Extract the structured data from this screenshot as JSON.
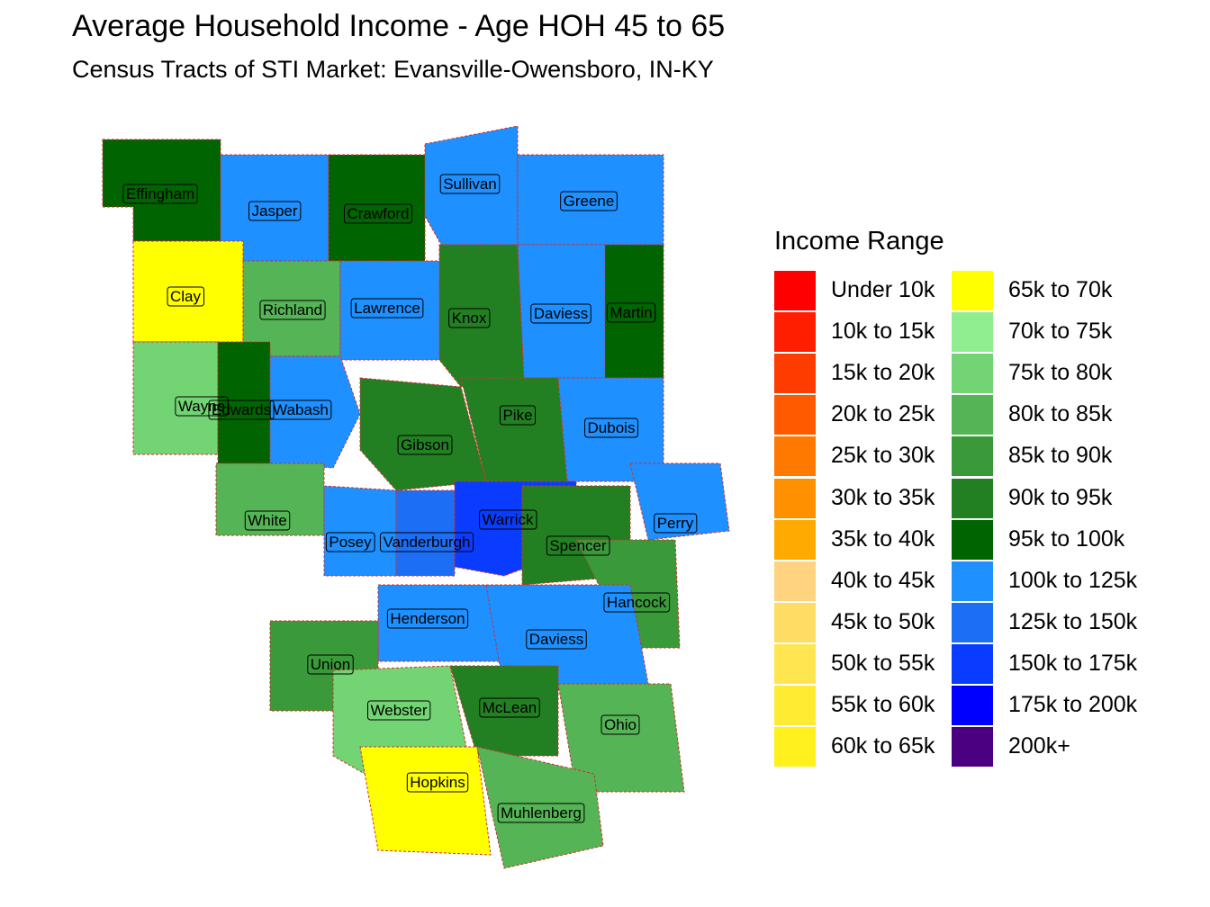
{
  "title": "Average Household Income - Age HOH 45 to 65",
  "subtitle": "Census Tracts of STI Market: Evansville-Owensboro, IN-KY",
  "legend": {
    "title": "Income Range",
    "items": [
      {
        "label": "Under 10k",
        "color": "#FF0000"
      },
      {
        "label": "10k to 15k",
        "color": "#FF1E00"
      },
      {
        "label": "15k to 20k",
        "color": "#FF3C00"
      },
      {
        "label": "20k to 25k",
        "color": "#FF5A00"
      },
      {
        "label": "25k to 30k",
        "color": "#FF7800"
      },
      {
        "label": "30k to 35k",
        "color": "#FF9100"
      },
      {
        "label": "35k to 40k",
        "color": "#FFAA00"
      },
      {
        "label": "40k to 45k",
        "color": "#FFD37F"
      },
      {
        "label": "45k to 50k",
        "color": "#FFDC64"
      },
      {
        "label": "50k to 55k",
        "color": "#FFE650"
      },
      {
        "label": "55k to 60k",
        "color": "#FFEB32"
      },
      {
        "label": "60k to 65k",
        "color": "#FFF01E"
      },
      {
        "label": "65k to 70k",
        "color": "#FFFF00"
      },
      {
        "label": "70k to 75k",
        "color": "#90EE90"
      },
      {
        "label": "75k to 80k",
        "color": "#73D473"
      },
      {
        "label": "80k to 85k",
        "color": "#55B455"
      },
      {
        "label": "85k to 90k",
        "color": "#3A9A3A"
      },
      {
        "label": "90k to 95k",
        "color": "#228022"
      },
      {
        "label": "95k to 100k",
        "color": "#006400"
      },
      {
        "label": "100k to 125k",
        "color": "#1E90FF"
      },
      {
        "label": "125k to 150k",
        "color": "#1C6EF5"
      },
      {
        "label": "150k to 175k",
        "color": "#0A3CFF"
      },
      {
        "label": "175k to 200k",
        "color": "#0000FF"
      },
      {
        "label": "200k+",
        "color": "#4B0082"
      }
    ]
  },
  "counties": [
    {
      "name": "Effingham",
      "range": "95k to 100k"
    },
    {
      "name": "Jasper",
      "range": "100k to 125k"
    },
    {
      "name": "Crawford",
      "range": "95k to 100k"
    },
    {
      "name": "Sullivan",
      "range": "100k to 125k"
    },
    {
      "name": "Greene",
      "range": "100k to 125k"
    },
    {
      "name": "Clay",
      "range": "65k to 70k"
    },
    {
      "name": "Richland",
      "range": "80k to 85k"
    },
    {
      "name": "Lawrence",
      "range": "100k to 125k"
    },
    {
      "name": "Knox",
      "range": "90k to 95k"
    },
    {
      "name": "Daviess",
      "range": "100k to 125k"
    },
    {
      "name": "Martin",
      "range": "95k to 100k"
    },
    {
      "name": "Wayne",
      "range": "75k to 80k"
    },
    {
      "name": "Edwards",
      "range": "95k to 100k"
    },
    {
      "name": "Wabash",
      "range": "100k to 125k"
    },
    {
      "name": "Pike",
      "range": "90k to 95k"
    },
    {
      "name": "Dubois",
      "range": "100k to 125k"
    },
    {
      "name": "Gibson",
      "range": "90k to 95k"
    },
    {
      "name": "White",
      "range": "80k to 85k"
    },
    {
      "name": "Posey",
      "range": "100k to 125k"
    },
    {
      "name": "Vanderburgh",
      "range": "125k to 150k"
    },
    {
      "name": "Warrick",
      "range": "150k to 175k"
    },
    {
      "name": "Spencer",
      "range": "90k to 95k"
    },
    {
      "name": "Perry",
      "range": "100k to 125k"
    },
    {
      "name": "Hancock",
      "range": "85k to 90k"
    },
    {
      "name": "Henderson",
      "range": "100k to 125k"
    },
    {
      "name": "Daviess",
      "range": "100k to 125k"
    },
    {
      "name": "Union",
      "range": "85k to 90k"
    },
    {
      "name": "Webster",
      "range": "75k to 80k"
    },
    {
      "name": "McLean",
      "range": "90k to 95k"
    },
    {
      "name": "Ohio",
      "range": "80k to 85k"
    },
    {
      "name": "Hopkins",
      "range": "65k to 70k"
    },
    {
      "name": "Muhlenberg",
      "range": "80k to 85k"
    }
  ]
}
